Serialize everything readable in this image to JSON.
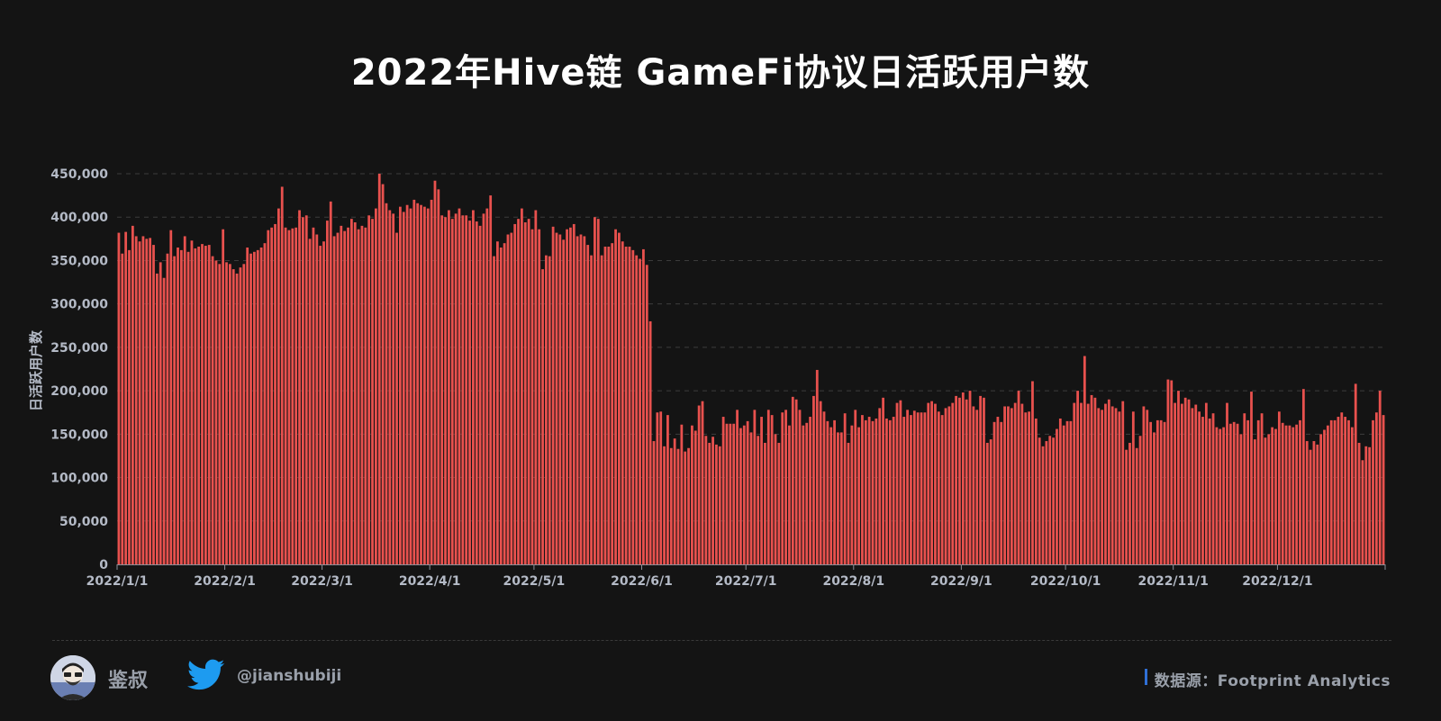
{
  "title": "2022年Hive链 GameFi协议日活跃用户数",
  "footer": {
    "author": "鉴叔",
    "twitter_handle": "@jianshubiji",
    "source": "数据源：Footprint  Analytics"
  },
  "colors": {
    "background": "#141414",
    "bar": "#e8514e",
    "bar_edge": "#ff7b72",
    "accent": "#2f6fd6",
    "twitter": "#1d9bf0"
  },
  "icons": [
    "avatar",
    "twitter-bird-icon"
  ],
  "chart_data": {
    "type": "bar",
    "title": "2022年Hive链 GameFi协议日活跃用户数",
    "xlabel": "",
    "ylabel": "日活跃用户数",
    "ylim": [
      0,
      450000
    ],
    "yticks": [
      "0",
      "50,000",
      "100,000",
      "150,000",
      "200,000",
      "250,000",
      "300,000",
      "350,000",
      "400,000",
      "450,000"
    ],
    "xtick_labels": [
      "2022/1/1",
      "2022/2/1",
      "2022/3/1",
      "2022/4/1",
      "2022/5/1",
      "2022/6/1",
      "2022/7/1",
      "2022/8/1",
      "2022/9/1",
      "2022/10/1",
      "2022/11/1",
      "2022/12/1"
    ],
    "grid": "horizontal dashed",
    "x_start": "2022/1/1",
    "x_end": "2022/12/31",
    "monthly_values": [
      [
        382000,
        358000,
        383000,
        362000,
        390000,
        378000,
        372000,
        378000,
        375000,
        376000,
        368000,
        335000,
        348000,
        330000,
        358000,
        385000,
        355000,
        365000,
        362000,
        378000,
        360000,
        373000,
        364000,
        366000,
        369000,
        367000,
        368000,
        355000,
        350000,
        346000,
        386000
      ],
      [
        348000,
        346000,
        340000,
        335000,
        342000,
        346000,
        365000,
        358000,
        360000,
        362000,
        365000,
        370000,
        385000,
        388000,
        392000,
        410000,
        435000,
        388000,
        385000,
        387000,
        388000,
        408000,
        400000,
        402000,
        375000,
        388000,
        380000,
        367000
      ],
      [
        372000,
        396000,
        418000,
        378000,
        382000,
        390000,
        384000,
        388000,
        398000,
        394000,
        386000,
        390000,
        388000,
        402000,
        398000,
        410000,
        450000,
        438000,
        416000,
        408000,
        404000,
        382000,
        412000,
        406000,
        414000,
        410000,
        420000,
        416000,
        414000,
        412000,
        410000
      ],
      [
        420000,
        442000,
        432000,
        402000,
        400000,
        408000,
        398000,
        404000,
        410000,
        402000,
        402000,
        396000,
        408000,
        395000,
        390000,
        404000,
        410000,
        425000,
        355000,
        372000,
        365000,
        370000,
        380000,
        382000,
        392000,
        398000,
        410000,
        394000,
        398000,
        386000
      ],
      [
        408000,
        386000,
        340000,
        356000,
        355000,
        389000,
        382000,
        380000,
        374000,
        386000,
        388000,
        392000,
        378000,
        380000,
        378000,
        368000,
        356000,
        400000,
        398000,
        356000,
        366000,
        366000,
        370000,
        386000,
        382000,
        372000,
        366000,
        366000,
        362000,
        356000,
        352000
      ],
      [
        363000,
        345000,
        280000,
        142000,
        175000,
        176000,
        136000,
        172000,
        134000,
        145000,
        133000,
        161000,
        130000,
        134000,
        160000,
        154000,
        183000,
        188000,
        148000,
        140000,
        147000,
        138000,
        136000,
        170000,
        162000,
        162000,
        162000,
        178000,
        157000,
        160000
      ],
      [
        165000,
        152000,
        178000,
        148000,
        170000,
        140000,
        178000,
        172000,
        150000,
        140000,
        175000,
        178000,
        160000,
        193000,
        190000,
        178000,
        160000,
        163000,
        170000,
        194000,
        224000,
        188000,
        176000,
        165000,
        158000,
        166000,
        152000,
        152000,
        174000,
        140000,
        160000
      ],
      [
        178000,
        158000,
        172000,
        166000,
        170000,
        165000,
        168000,
        180000,
        192000,
        168000,
        166000,
        170000,
        186000,
        189000,
        170000,
        178000,
        172000,
        177000,
        175000,
        175000,
        175000,
        186000,
        188000,
        185000,
        176000,
        172000,
        180000,
        182000,
        186000,
        194000,
        192000
      ],
      [
        198000,
        190000,
        200000,
        182000,
        178000,
        194000,
        192000,
        140000,
        144000,
        164000,
        170000,
        164000,
        182000,
        182000,
        180000,
        186000,
        200000,
        185000,
        175000,
        176000,
        211000,
        168000,
        146000,
        136000,
        142000,
        148000,
        146000,
        156000,
        168000,
        160000
      ],
      [
        165000,
        165000,
        186000,
        200000,
        186000,
        240000,
        185000,
        195000,
        192000,
        180000,
        178000,
        185000,
        190000,
        182000,
        180000,
        176000,
        188000,
        132000,
        140000,
        176000,
        134000,
        148000,
        182000,
        178000,
        164000,
        152000,
        166000,
        166000,
        164000,
        213000,
        212000
      ],
      [
        186000,
        200000,
        185000,
        192000,
        190000,
        180000,
        184000,
        176000,
        170000,
        186000,
        168000,
        174000,
        158000,
        156000,
        158000,
        186000,
        162000,
        164000,
        162000,
        150000,
        174000,
        166000,
        199000,
        144000,
        166000,
        174000,
        146000,
        150000,
        158000,
        156000
      ],
      [
        176000,
        163000,
        160000,
        160000,
        158000,
        161000,
        166000,
        202000,
        142000,
        132000,
        142000,
        138000,
        150000,
        155000,
        160000,
        166000,
        166000,
        170000,
        175000,
        170000,
        166000,
        158000,
        208000,
        140000,
        120000,
        136000,
        135000,
        166000,
        175000,
        200000,
        172000
      ]
    ]
  }
}
